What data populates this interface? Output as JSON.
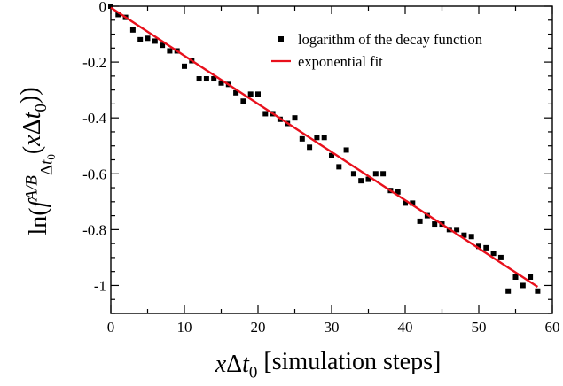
{
  "chart_data": {
    "type": "scatter",
    "xlabel_parts": [
      {
        "text": "x",
        "style": "italic",
        "shift": "base"
      },
      {
        "text": "Δ",
        "style": "normal",
        "shift": "base"
      },
      {
        "text": "t",
        "style": "italic",
        "shift": "base"
      },
      {
        "text": "0",
        "style": "normal",
        "shift": "sub"
      },
      {
        "text": " [simulation steps]",
        "style": "normal",
        "shift": "base"
      }
    ],
    "ylabel_parts": [
      {
        "text": "ln(",
        "style": "normal",
        "shift": "base"
      },
      {
        "text": "f",
        "style": "italic",
        "shift": "base"
      },
      {
        "text": "A/B",
        "style": "italic",
        "shift": "sup"
      },
      {
        "text": "Δ",
        "style": "normal",
        "shift": "sub"
      },
      {
        "text": "t",
        "style": "italic",
        "shift": "sub"
      },
      {
        "text": "0",
        "style": "normal",
        "shift": "subsub"
      },
      {
        "text": "(",
        "style": "normal",
        "shift": "base"
      },
      {
        "text": "x",
        "style": "italic",
        "shift": "base"
      },
      {
        "text": "Δ",
        "style": "normal",
        "shift": "base"
      },
      {
        "text": "t",
        "style": "italic",
        "shift": "base"
      },
      {
        "text": "0",
        "style": "normal",
        "shift": "sub"
      },
      {
        "text": "))",
        "style": "normal",
        "shift": "base"
      }
    ],
    "xlim": [
      0,
      60
    ],
    "ylim": [
      -1.1,
      0
    ],
    "xticks": [
      0,
      10,
      20,
      30,
      40,
      50,
      60
    ],
    "xtick_labels": [
      "0",
      "10",
      "20",
      "30",
      "40",
      "50",
      "60"
    ],
    "yticks": [
      0,
      -0.2,
      -0.4,
      -0.6,
      -0.8,
      -1.0
    ],
    "ytick_labels": [
      "0",
      "-0.2",
      "-0.4",
      "-0.6",
      "-0.8",
      "-1"
    ],
    "grid": false,
    "legend_position": "top-right",
    "series": [
      {
        "name": "logarithm of the decay function",
        "kind": "scatter",
        "marker": "square",
        "color": "#000000",
        "points": [
          [
            0,
            0.0
          ],
          [
            1,
            -0.03
          ],
          [
            2,
            -0.04
          ],
          [
            3,
            -0.085
          ],
          [
            4,
            -0.12
          ],
          [
            5,
            -0.115
          ],
          [
            6,
            -0.125
          ],
          [
            7,
            -0.14
          ],
          [
            8,
            -0.16
          ],
          [
            9,
            -0.16
          ],
          [
            10,
            -0.215
          ],
          [
            11,
            -0.195
          ],
          [
            12,
            -0.26
          ],
          [
            13,
            -0.26
          ],
          [
            14,
            -0.26
          ],
          [
            15,
            -0.275
          ],
          [
            16,
            -0.28
          ],
          [
            17,
            -0.31
          ],
          [
            18,
            -0.34
          ],
          [
            19,
            -0.315
          ],
          [
            20,
            -0.315
          ],
          [
            21,
            -0.385
          ],
          [
            22,
            -0.385
          ],
          [
            23,
            -0.405
          ],
          [
            24,
            -0.42
          ],
          [
            25,
            -0.4
          ],
          [
            26,
            -0.475
          ],
          [
            27,
            -0.505
          ],
          [
            28,
            -0.47
          ],
          [
            29,
            -0.47
          ],
          [
            30,
            -0.535
          ],
          [
            31,
            -0.575
          ],
          [
            32,
            -0.515
          ],
          [
            33,
            -0.6
          ],
          [
            34,
            -0.625
          ],
          [
            35,
            -0.62
          ],
          [
            36,
            -0.6
          ],
          [
            37,
            -0.6
          ],
          [
            38,
            -0.66
          ],
          [
            39,
            -0.665
          ],
          [
            40,
            -0.705
          ],
          [
            41,
            -0.705
          ],
          [
            42,
            -0.77
          ],
          [
            43,
            -0.75
          ],
          [
            44,
            -0.78
          ],
          [
            45,
            -0.78
          ],
          [
            46,
            -0.8
          ],
          [
            47,
            -0.8
          ],
          [
            48,
            -0.82
          ],
          [
            49,
            -0.825
          ],
          [
            50,
            -0.86
          ],
          [
            51,
            -0.865
          ],
          [
            52,
            -0.885
          ],
          [
            53,
            -0.9
          ],
          [
            54,
            -1.02
          ],
          [
            55,
            -0.97
          ],
          [
            56,
            -1.0
          ],
          [
            57,
            -0.97
          ],
          [
            58,
            -1.02
          ]
        ]
      },
      {
        "name": "exponential fit",
        "kind": "line",
        "color": "#e8101c",
        "points": [
          [
            0,
            -0.005
          ],
          [
            58,
            -1.005
          ]
        ]
      }
    ]
  }
}
